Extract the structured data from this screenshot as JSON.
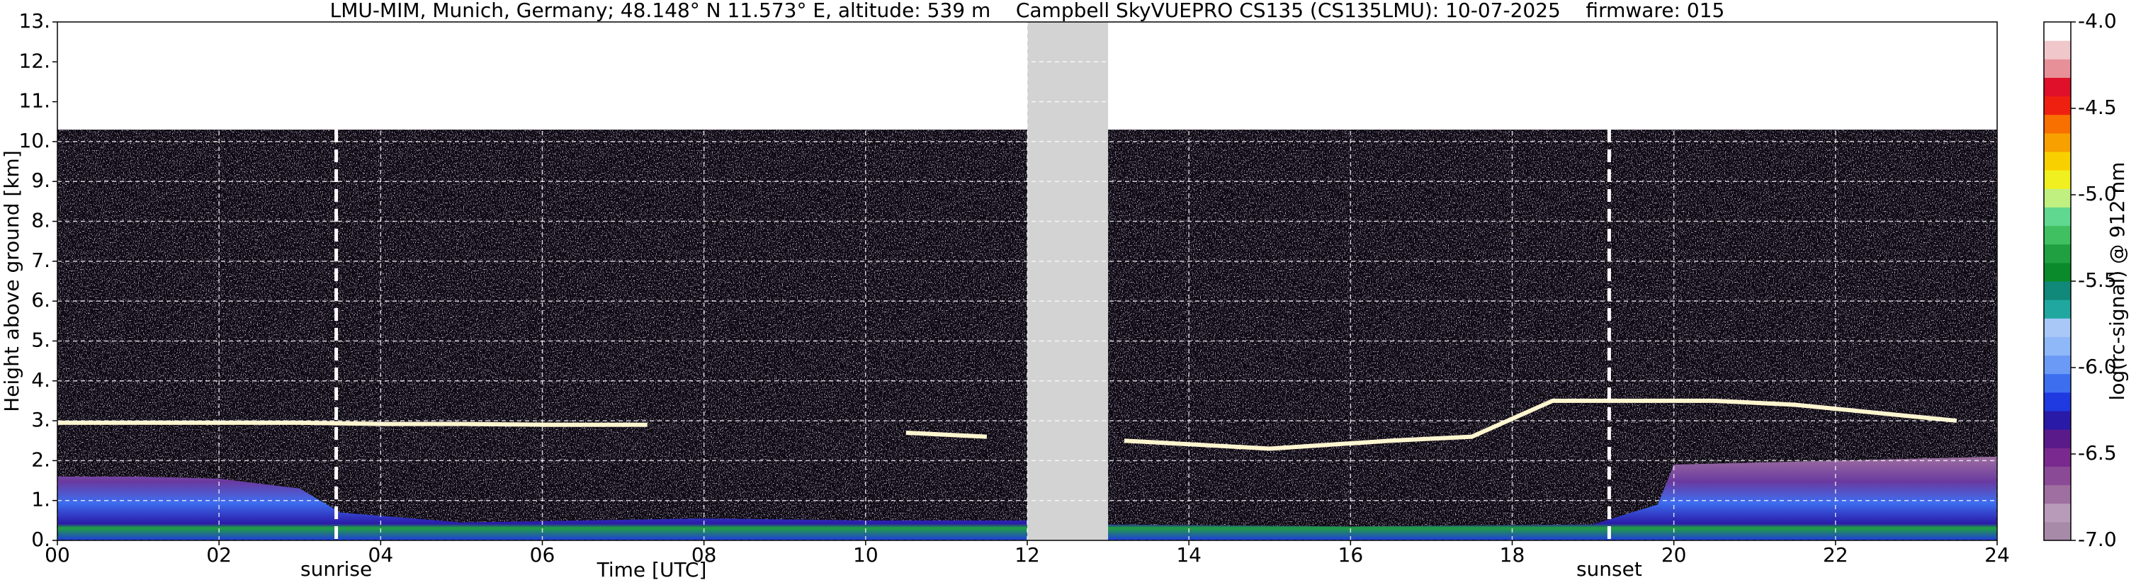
{
  "chart_data": {
    "type": "heatmap",
    "title": "LMU-MIM, Munich, Germany; 48.148° N 11.573° E, altitude: 539 m    Campbell SkyVUEPRO CS135 (CS135LMU): 10-07-2025    firmware: 015",
    "xlabel": "Time [UTC]",
    "ylabel": "Height above ground [km]",
    "xlim": [
      0,
      24
    ],
    "ylim": [
      0,
      13
    ],
    "xticks": [
      {
        "value": 0,
        "label": "00"
      },
      {
        "value": 2,
        "label": "02"
      },
      {
        "value": 4,
        "label": "04"
      },
      {
        "value": 6,
        "label": "06"
      },
      {
        "value": 8,
        "label": "08"
      },
      {
        "value": 10,
        "label": "10"
      },
      {
        "value": 12,
        "label": "12"
      },
      {
        "value": 14,
        "label": "14"
      },
      {
        "value": 16,
        "label": "16"
      },
      {
        "value": 18,
        "label": "18"
      },
      {
        "value": 20,
        "label": "20"
      },
      {
        "value": 22,
        "label": "22"
      },
      {
        "value": 24,
        "label": "24"
      }
    ],
    "yticks": [
      {
        "value": 0,
        "label": "0."
      },
      {
        "value": 1,
        "label": "1."
      },
      {
        "value": 2,
        "label": "2."
      },
      {
        "value": 3,
        "label": "3."
      },
      {
        "value": 4,
        "label": "4."
      },
      {
        "value": 5,
        "label": "5."
      },
      {
        "value": 6,
        "label": "6."
      },
      {
        "value": 7,
        "label": "7."
      },
      {
        "value": 8,
        "label": "8."
      },
      {
        "value": 9,
        "label": "9."
      },
      {
        "value": 10,
        "label": "10."
      },
      {
        "value": 11,
        "label": "11."
      },
      {
        "value": 12,
        "label": "12."
      },
      {
        "value": 13,
        "label": "13."
      }
    ],
    "grid": true,
    "signal_top": 10.3,
    "no_data": [
      12,
      13
    ],
    "annotations": [
      {
        "text": "sunrise",
        "x": 3.45
      },
      {
        "text": "sunset",
        "x": 19.2
      }
    ],
    "boundary_layer": {
      "x": [
        0,
        1,
        2,
        3,
        3.5,
        5,
        8,
        10,
        12,
        13,
        16,
        19,
        19.8,
        20,
        22,
        24
      ],
      "y": [
        1.6,
        1.6,
        1.55,
        1.3,
        0.7,
        0.45,
        0.55,
        0.5,
        0.5,
        0.4,
        0.35,
        0.4,
        0.9,
        1.9,
        2.0,
        2.1
      ]
    },
    "cloud_layer": {
      "x": [
        0,
        1,
        2,
        3,
        4,
        5,
        6,
        7.3,
        null,
        10.5,
        11.5,
        null,
        13.2,
        15,
        16.5,
        17.5,
        18.5,
        19.5,
        20.5,
        21.5,
        22.5,
        23.5
      ],
      "y": [
        2.95,
        2.95,
        2.95,
        2.95,
        2.92,
        2.92,
        2.9,
        2.9,
        null,
        2.7,
        2.6,
        null,
        2.5,
        2.3,
        2.5,
        2.6,
        3.5,
        3.5,
        3.5,
        3.4,
        3.2,
        3.0
      ]
    },
    "colorbar": {
      "label": "log(rc-signal) @ 912 nm",
      "lim": [
        -7,
        -4
      ],
      "ticks": [
        {
          "value": -4,
          "label": "-4.0"
        },
        {
          "value": -4.5,
          "label": "-4.5"
        },
        {
          "value": -5,
          "label": "-5.0"
        },
        {
          "value": -5.5,
          "label": "-5.5"
        },
        {
          "value": -6,
          "label": "-6.0"
        },
        {
          "value": -6.5,
          "label": "-6.5"
        },
        {
          "value": -7,
          "label": "-7.0"
        }
      ],
      "colors": [
        "#a78aa8",
        "#b89bb8",
        "#9e6fa0",
        "#8b4a96",
        "#7a2a8e",
        "#5b1a8a",
        "#2a1aa8",
        "#1f3ae0",
        "#3d6ef0",
        "#6a9af5",
        "#8fb8f8",
        "#a9c8f8",
        "#20a8a0",
        "#10887a",
        "#0a8a2a",
        "#20a040",
        "#40c060",
        "#60d890",
        "#c0f080",
        "#f0f020",
        "#f8d000",
        "#f8a000",
        "#f87000",
        "#f02010",
        "#e0102a",
        "#e89098",
        "#f0c8cc",
        "#ffffff"
      ]
    }
  }
}
